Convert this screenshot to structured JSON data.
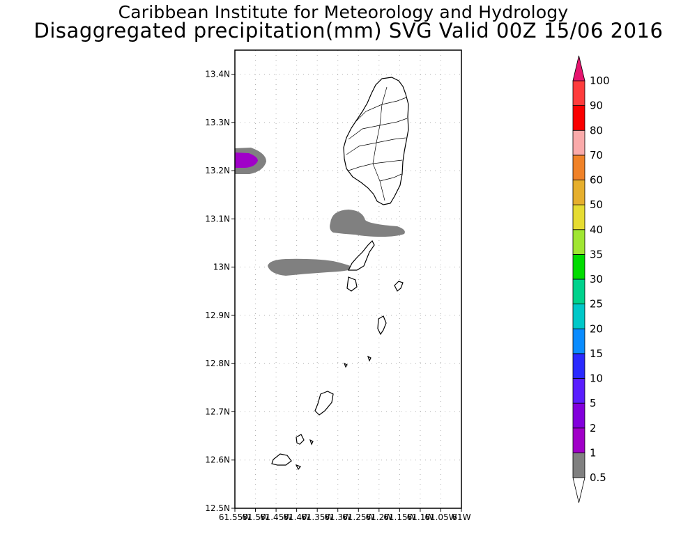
{
  "header": {
    "institute": "Caribbean Institute for Meteorology and Hydrology",
    "product": "Disaggregated precipitation(mm) SVG Valid 00Z 15/06 2016"
  },
  "map": {
    "lat_range": [
      12.5,
      13.45
    ],
    "lon_range": [
      -61.55,
      -61.0
    ],
    "lat_ticks": [
      {
        "value": 13.4,
        "label": "13.4N"
      },
      {
        "value": 13.3,
        "label": "13.3N"
      },
      {
        "value": 13.2,
        "label": "13.2N"
      },
      {
        "value": 13.1,
        "label": "13.1N"
      },
      {
        "value": 13.0,
        "label": "13N"
      },
      {
        "value": 12.9,
        "label": "12.9N"
      },
      {
        "value": 12.8,
        "label": "12.8N"
      },
      {
        "value": 12.7,
        "label": "12.7N"
      },
      {
        "value": 12.6,
        "label": "12.6N"
      },
      {
        "value": 12.5,
        "label": "12.5N"
      }
    ],
    "lon_ticks": [
      {
        "value": -61.55,
        "label": "61.55W"
      },
      {
        "value": -61.5,
        "label": "61.5W"
      },
      {
        "value": -61.45,
        "label": "61.45W"
      },
      {
        "value": -61.4,
        "label": "61.4W"
      },
      {
        "value": -61.35,
        "label": "61.35W"
      },
      {
        "value": -61.3,
        "label": "61.3W"
      },
      {
        "value": -61.25,
        "label": "61.25W"
      },
      {
        "value": -61.2,
        "label": "61.2W"
      },
      {
        "value": -61.15,
        "label": "61.15W"
      },
      {
        "value": -61.1,
        "label": "61.1W"
      },
      {
        "value": -61.05,
        "label": "61.05W"
      },
      {
        "value": -61.0,
        "label": "61W"
      }
    ],
    "grid": true
  },
  "legend": {
    "levels": [
      {
        "label": "0.5",
        "color": "#808080"
      },
      {
        "label": "1",
        "color": "#a000c8"
      },
      {
        "label": "2",
        "color": "#8200dc"
      },
      {
        "label": "5",
        "color": "#5a1eff"
      },
      {
        "label": "10",
        "color": "#2a2aff"
      },
      {
        "label": "15",
        "color": "#0a8cff"
      },
      {
        "label": "20",
        "color": "#00c8c8"
      },
      {
        "label": "25",
        "color": "#00d28c"
      },
      {
        "label": "30",
        "color": "#00dc00"
      },
      {
        "label": "35",
        "color": "#a0e632"
      },
      {
        "label": "40",
        "color": "#e6dc32"
      },
      {
        "label": "50",
        "color": "#e6af2d"
      },
      {
        "label": "60",
        "color": "#f08228"
      },
      {
        "label": "70",
        "color": "#faaaaa"
      },
      {
        "label": "80",
        "color": "#fa0000"
      },
      {
        "label": "90",
        "color": "#ff3c3c"
      },
      {
        "label": "100",
        "color": "#e6146e"
      }
    ],
    "under_color": "#ffffff",
    "over_color": "#e6146e"
  }
}
